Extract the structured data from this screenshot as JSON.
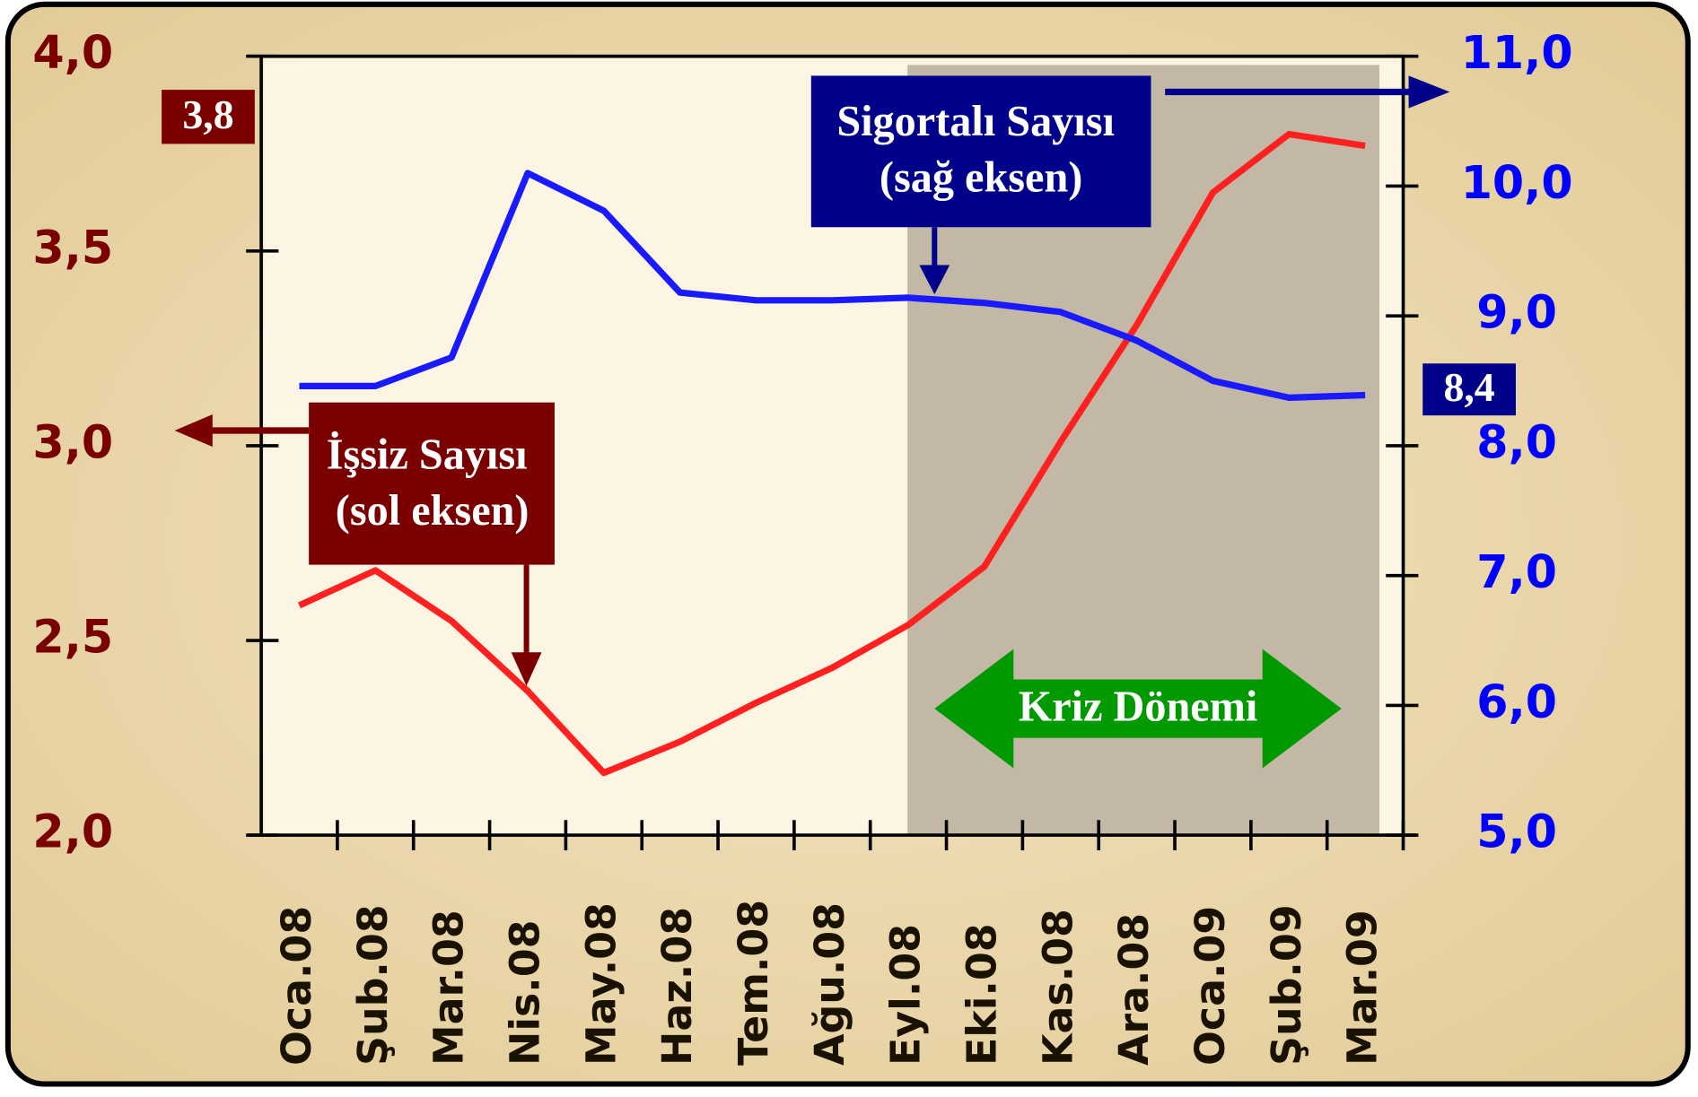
{
  "chart_data": {
    "type": "line",
    "categories": [
      "Oca.08",
      "Şub.08",
      "Mar.08",
      "Nis.08",
      "May.08",
      "Haz.08",
      "Tem.08",
      "Ağu.08",
      "Eyl.08",
      "Eki.08",
      "Kas.08",
      "Ara.08",
      "Oca.09",
      "Şub.09",
      "Mar.09"
    ],
    "series": [
      {
        "name": "İşsiz Sayısı",
        "color": "#ff2020",
        "axis": "y",
        "values": [
          2.59,
          2.68,
          2.55,
          2.37,
          2.16,
          2.24,
          2.34,
          2.43,
          2.54,
          2.69,
          3.01,
          3.31,
          3.65,
          3.8,
          3.77
        ]
      },
      {
        "name": "Sigortalı Sayısı",
        "color": "#1a1aff",
        "axis": "y2",
        "values": [
          8.46,
          8.46,
          8.68,
          10.1,
          9.81,
          9.18,
          9.12,
          9.12,
          9.14,
          9.1,
          9.03,
          8.81,
          8.5,
          8.37,
          8.39
        ]
      }
    ],
    "ylim": [
      2.0,
      4.0
    ],
    "yticks": [
      {
        "value": 2.0,
        "label": "2,0"
      },
      {
        "value": 2.5,
        "label": "2,5"
      },
      {
        "value": 3.0,
        "label": "3,0"
      },
      {
        "value": 3.5,
        "label": "3,5"
      },
      {
        "value": 4.0,
        "label": "4,0"
      }
    ],
    "y2lim": [
      5.0,
      11.0
    ],
    "y2ticks": [
      {
        "value": 5.0,
        "label": "5,0"
      },
      {
        "value": 6.0,
        "label": "6,0"
      },
      {
        "value": 7.0,
        "label": "7,0"
      },
      {
        "value": 8.0,
        "label": "8,0"
      },
      {
        "value": 9.0,
        "label": "9,0"
      },
      {
        "value": 10.0,
        "label": "10,0"
      },
      {
        "value": 11.0,
        "label": "11,0"
      }
    ],
    "annotations": [
      "3,8",
      "8,4",
      "Sigortalı Sayısı",
      "(sağ eksen)",
      "İşsiz Sayısı",
      "(sol eksen)",
      "Kriz Dönemi"
    ]
  }
}
